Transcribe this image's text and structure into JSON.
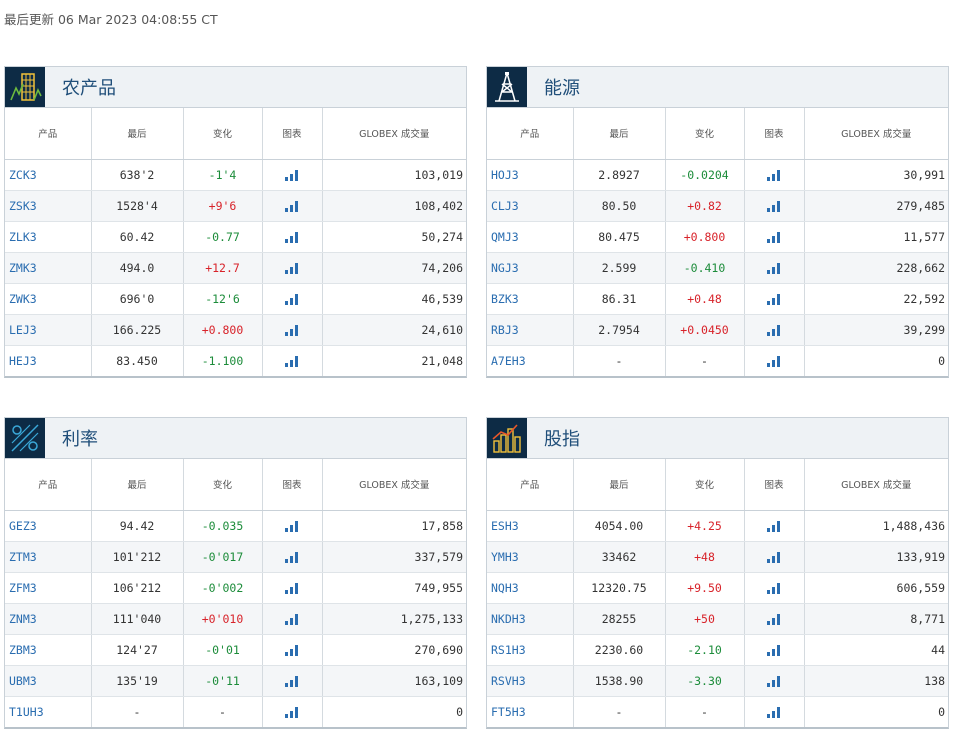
{
  "last_updated": "最后更新 06 Mar 2023 04:08:55 CT",
  "colors": {
    "up": "#d8232a",
    "down": "#1c8c3a",
    "link": "#2a6db0",
    "header_icon_bg": "#0d2b45",
    "title": "#1f4e79"
  },
  "columns": {
    "product": "产品",
    "last": "最后",
    "change": "变化",
    "chart": "图表",
    "volume": "GLOBEX 成交量"
  },
  "panels": [
    {
      "title": "农产品",
      "icon": "grain-icon",
      "rows": [
        {
          "sym": "ZCK3",
          "last": "638'2",
          "chg": "-1'4",
          "dir": "down",
          "vol": "103,019"
        },
        {
          "sym": "ZSK3",
          "last": "1528'4",
          "chg": "+9'6",
          "dir": "up",
          "vol": "108,402"
        },
        {
          "sym": "ZLK3",
          "last": "60.42",
          "chg": "-0.77",
          "dir": "down",
          "vol": "50,274"
        },
        {
          "sym": "ZMK3",
          "last": "494.0",
          "chg": "+12.7",
          "dir": "up",
          "vol": "74,206"
        },
        {
          "sym": "ZWK3",
          "last": "696'0",
          "chg": "-12'6",
          "dir": "down",
          "vol": "46,539"
        },
        {
          "sym": "LEJ3",
          "last": "166.225",
          "chg": "+0.800",
          "dir": "up",
          "vol": "24,610"
        },
        {
          "sym": "HEJ3",
          "last": "83.450",
          "chg": "-1.100",
          "dir": "down",
          "vol": "21,048"
        }
      ]
    },
    {
      "title": "能源",
      "icon": "oil-rig-icon",
      "rows": [
        {
          "sym": "HOJ3",
          "last": "2.8927",
          "chg": "-0.0204",
          "dir": "down",
          "vol": "30,991"
        },
        {
          "sym": "CLJ3",
          "last": "80.50",
          "chg": "+0.82",
          "dir": "up",
          "vol": "279,485"
        },
        {
          "sym": "QMJ3",
          "last": "80.475",
          "chg": "+0.800",
          "dir": "up",
          "vol": "11,577"
        },
        {
          "sym": "NGJ3",
          "last": "2.599",
          "chg": "-0.410",
          "dir": "down",
          "vol": "228,662"
        },
        {
          "sym": "BZK3",
          "last": "86.31",
          "chg": "+0.48",
          "dir": "up",
          "vol": "22,592"
        },
        {
          "sym": "RBJ3",
          "last": "2.7954",
          "chg": "+0.0450",
          "dir": "up",
          "vol": "39,299"
        },
        {
          "sym": "A7EH3",
          "last": "-",
          "chg": "-",
          "dir": "flat",
          "vol": "0"
        }
      ]
    },
    {
      "title": "利率",
      "icon": "interest-rate-icon",
      "rows": [
        {
          "sym": "GEZ3",
          "last": "94.42",
          "chg": "-0.035",
          "dir": "down",
          "vol": "17,858"
        },
        {
          "sym": "ZTM3",
          "last": "101'212",
          "chg": "-0'017",
          "dir": "down",
          "vol": "337,579"
        },
        {
          "sym": "ZFM3",
          "last": "106'212",
          "chg": "-0'002",
          "dir": "down",
          "vol": "749,955"
        },
        {
          "sym": "ZNM3",
          "last": "111'040",
          "chg": "+0'010",
          "dir": "up",
          "vol": "1,275,133"
        },
        {
          "sym": "ZBM3",
          "last": "124'27",
          "chg": "-0'01",
          "dir": "down",
          "vol": "270,690"
        },
        {
          "sym": "UBM3",
          "last": "135'19",
          "chg": "-0'11",
          "dir": "down",
          "vol": "163,109"
        },
        {
          "sym": "T1UH3",
          "last": "-",
          "chg": "-",
          "dir": "flat",
          "vol": "0"
        }
      ]
    },
    {
      "title": "股指",
      "icon": "stock-index-icon",
      "rows": [
        {
          "sym": "ESH3",
          "last": "4054.00",
          "chg": "+4.25",
          "dir": "up",
          "vol": "1,488,436"
        },
        {
          "sym": "YMH3",
          "last": "33462",
          "chg": "+48",
          "dir": "up",
          "vol": "133,919"
        },
        {
          "sym": "NQH3",
          "last": "12320.75",
          "chg": "+9.50",
          "dir": "up",
          "vol": "606,559"
        },
        {
          "sym": "NKDH3",
          "last": "28255",
          "chg": "+50",
          "dir": "up",
          "vol": "8,771"
        },
        {
          "sym": "RS1H3",
          "last": "2230.60",
          "chg": "-2.10",
          "dir": "down",
          "vol": "44"
        },
        {
          "sym": "RSVH3",
          "last": "1538.90",
          "chg": "-3.30",
          "dir": "down",
          "vol": "138"
        },
        {
          "sym": "FT5H3",
          "last": "-",
          "chg": "-",
          "dir": "flat",
          "vol": "0"
        }
      ]
    }
  ]
}
